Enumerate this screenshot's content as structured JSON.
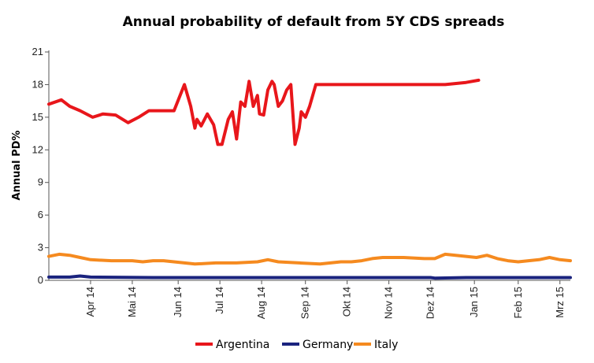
{
  "chart_data": {
    "type": "line",
    "title": "Annual probability of default from 5Y CDS spreads",
    "xlabel": "",
    "ylabel": "Annual PD%",
    "ylim": [
      0,
      21
    ],
    "yticks": [
      0,
      3,
      6,
      9,
      12,
      15,
      18,
      21
    ],
    "xlim": [
      0,
      25
    ],
    "x_ticks": [
      {
        "label": "Apr 14",
        "x": 2
      },
      {
        "label": "Mai 14",
        "x": 4
      },
      {
        "label": "Jun 14",
        "x": 6.2
      },
      {
        "label": "Jul 14",
        "x": 8.2
      },
      {
        "label": "Aug 14",
        "x": 10.2
      },
      {
        "label": "Sep 14",
        "x": 12.3
      },
      {
        "label": "Okt 14",
        "x": 14.3
      },
      {
        "label": "Nov 14",
        "x": 16.3
      },
      {
        "label": "Dez 14",
        "x": 18.3
      },
      {
        "label": "Jan 15",
        "x": 20.4
      },
      {
        "label": "Feb 15",
        "x": 22.5
      },
      {
        "label": "Mrz 15",
        "x": 24.5
      }
    ],
    "series": [
      {
        "name": "Argentina",
        "color": "#e8161b",
        "x": [
          0,
          0.6,
          1.0,
          1.5,
          2.1,
          2.6,
          3.2,
          3.8,
          4.3,
          4.8,
          5.4,
          6.0,
          6.5,
          6.8,
          7.0,
          7.1,
          7.3,
          7.6,
          7.9,
          8.1,
          8.3,
          8.6,
          8.8,
          9.0,
          9.2,
          9.4,
          9.6,
          9.8,
          10.0,
          10.1,
          10.3,
          10.5,
          10.7,
          10.8,
          11.0,
          11.2,
          11.4,
          11.6,
          11.8,
          12.0,
          12.1,
          12.3,
          12.5,
          12.8,
          13.0,
          13.1,
          13.3,
          13.4,
          13.6,
          14.0,
          15.0,
          16.0,
          17.0,
          18.0,
          19.0,
          20.0,
          20.6
        ],
        "values": [
          16.2,
          16.6,
          16.0,
          15.6,
          15.0,
          15.3,
          15.2,
          14.5,
          15.0,
          15.6,
          15.6,
          15.6,
          18.0,
          16.0,
          14.0,
          14.8,
          14.2,
          15.3,
          14.3,
          12.5,
          12.5,
          14.8,
          15.5,
          13.0,
          16.4,
          16.0,
          18.3,
          16.0,
          17.0,
          15.3,
          15.2,
          17.5,
          18.3,
          18.0,
          16.0,
          16.5,
          17.5,
          18.0,
          12.5,
          14.0,
          15.5,
          15.0,
          16.0,
          18.0,
          18.0,
          18.0,
          18.0,
          18.0,
          18.0,
          18.0,
          18.0,
          18.0,
          18.0,
          18.0,
          18.0,
          18.2,
          18.4
        ]
      },
      {
        "name": "Germany",
        "color": "#1a237e",
        "x": [
          0,
          1,
          1.5,
          2,
          5,
          10,
          15,
          18.3,
          18.5,
          20,
          25
        ],
        "values": [
          0.3,
          0.3,
          0.4,
          0.3,
          0.25,
          0.25,
          0.25,
          0.25,
          0.2,
          0.25,
          0.25
        ]
      },
      {
        "name": "Italy",
        "color": "#f58a1f",
        "x": [
          0,
          0.5,
          1.0,
          1.5,
          2.0,
          3.0,
          4.0,
          4.5,
          5.0,
          5.5,
          6.0,
          6.5,
          7.0,
          8.0,
          9.0,
          10.0,
          10.5,
          11.0,
          12.0,
          13.0,
          14.0,
          14.5,
          15.0,
          15.5,
          16.0,
          17.0,
          18.0,
          18.5,
          19.0,
          19.5,
          20.0,
          20.5,
          21.0,
          21.5,
          22.0,
          22.5,
          23.0,
          23.5,
          24.0,
          24.5,
          25.0
        ],
        "values": [
          2.2,
          2.4,
          2.3,
          2.1,
          1.9,
          1.8,
          1.8,
          1.7,
          1.8,
          1.8,
          1.7,
          1.6,
          1.5,
          1.6,
          1.6,
          1.7,
          1.9,
          1.7,
          1.6,
          1.5,
          1.7,
          1.7,
          1.8,
          2.0,
          2.1,
          2.1,
          2.0,
          2.0,
          2.4,
          2.3,
          2.2,
          2.1,
          2.3,
          2.0,
          1.8,
          1.7,
          1.8,
          1.9,
          2.1,
          1.9,
          1.8
        ]
      }
    ],
    "legend": [
      "Argentina",
      "Germany",
      "Italy"
    ],
    "legend_position": "bottom",
    "grid": false
  }
}
